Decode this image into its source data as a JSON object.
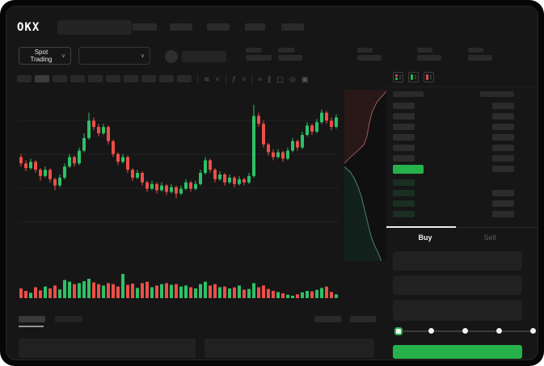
{
  "app": {
    "logo_text": "OKX"
  },
  "header": {
    "market_selector": {
      "label": "Spot Trading",
      "chevron": "∨"
    },
    "pair_selector": {
      "chevron": "∨"
    }
  },
  "colors": {
    "green": "#2ec168",
    "red": "#ec4f48",
    "accent_button": "#27b14b",
    "bid_row_tint": "#1a2f22",
    "depth_ask_fill": "#281818",
    "depth_ask_line": "#a05a55",
    "depth_bid_fill": "#12211c",
    "depth_bid_line": "#4e8070",
    "grid_line": "#222222"
  },
  "chart_toolbar": {
    "icons": [
      {
        "type": "divider"
      },
      {
        "type": "icon",
        "name": "indicator-icon",
        "glyph": "≋"
      },
      {
        "type": "icon",
        "name": "chevron-down-icon",
        "glyph": "˅"
      },
      {
        "type": "divider"
      },
      {
        "type": "icon",
        "name": "function-icon",
        "glyph": "ƒ"
      },
      {
        "type": "icon",
        "name": "chevron-down-icon",
        "glyph": "˅"
      },
      {
        "type": "divider"
      },
      {
        "type": "icon",
        "name": "line-chart-icon",
        "glyph": "≈"
      },
      {
        "type": "icon",
        "name": "draw-tool-icon",
        "glyph": "∥"
      },
      {
        "type": "icon",
        "name": "camera-icon",
        "glyph": "▢"
      },
      {
        "type": "icon",
        "name": "settings-gear-icon",
        "glyph": "◎"
      },
      {
        "type": "icon",
        "name": "fullscreen-icon",
        "glyph": "▣"
      }
    ]
  },
  "orderbook": {
    "view_toggles": [
      {
        "name": "book-split-view-icon",
        "stripes": [
          "red",
          "green"
        ]
      },
      {
        "name": "book-bids-view-icon",
        "stripes": [
          "green"
        ]
      },
      {
        "name": "book-asks-view-icon",
        "stripes": [
          "red"
        ]
      }
    ],
    "ask_row_count": 6,
    "bid_rows": [
      {
        "right_bar": false
      },
      {
        "right_bar": true
      },
      {
        "right_bar": true
      },
      {
        "right_bar": true
      }
    ]
  },
  "trade_panel": {
    "tabs": [
      {
        "label": "Buy",
        "active": true
      },
      {
        "label": "Sell",
        "active": false
      }
    ],
    "slider_stops_percent": [
      0,
      25,
      50,
      75,
      100
    ],
    "slider_value_percent": 0
  },
  "chart_data": [
    {
      "type": "candlestick",
      "title": "",
      "xlabel": "",
      "ylabel": "",
      "ylim": [
        0,
        100
      ],
      "grid": true,
      "candles": [
        [
          60,
          56,
          54,
          62
        ],
        [
          56,
          53,
          51,
          58
        ],
        [
          53,
          57,
          52,
          59
        ],
        [
          57,
          52,
          50,
          58
        ],
        [
          52,
          48,
          45,
          53
        ],
        [
          48,
          52,
          47,
          54
        ],
        [
          52,
          46,
          44,
          53
        ],
        [
          46,
          42,
          39,
          47
        ],
        [
          42,
          47,
          41,
          49
        ],
        [
          47,
          54,
          46,
          56
        ],
        [
          54,
          60,
          53,
          62
        ],
        [
          60,
          56,
          54,
          61
        ],
        [
          56,
          64,
          55,
          66
        ],
        [
          64,
          72,
          63,
          75
        ],
        [
          72,
          83,
          71,
          88
        ],
        [
          83,
          79,
          77,
          85
        ],
        [
          79,
          75,
          73,
          81
        ],
        [
          75,
          79,
          74,
          81
        ],
        [
          79,
          70,
          68,
          80
        ],
        [
          70,
          62,
          60,
          71
        ],
        [
          62,
          57,
          55,
          63
        ],
        [
          57,
          60,
          56,
          62
        ],
        [
          60,
          52,
          50,
          61
        ],
        [
          52,
          47,
          45,
          53
        ],
        [
          47,
          50,
          46,
          52
        ],
        [
          50,
          44,
          42,
          51
        ],
        [
          44,
          40,
          38,
          45
        ],
        [
          40,
          43,
          39,
          45
        ],
        [
          43,
          39,
          37,
          44
        ],
        [
          39,
          42,
          38,
          44
        ],
        [
          42,
          38,
          36,
          43
        ],
        [
          38,
          41,
          37,
          43
        ],
        [
          41,
          37,
          34,
          42
        ],
        [
          37,
          40,
          36,
          42
        ],
        [
          40,
          44,
          39,
          46
        ],
        [
          44,
          40,
          38,
          45
        ],
        [
          40,
          43,
          39,
          45
        ],
        [
          43,
          50,
          42,
          52
        ],
        [
          50,
          58,
          49,
          60
        ],
        [
          58,
          52,
          50,
          59
        ],
        [
          52,
          46,
          44,
          53
        ],
        [
          46,
          49,
          45,
          51
        ],
        [
          49,
          44,
          42,
          50
        ],
        [
          44,
          47,
          43,
          49
        ],
        [
          47,
          43,
          41,
          48
        ],
        [
          43,
          46,
          42,
          48
        ],
        [
          46,
          44,
          42,
          47
        ],
        [
          44,
          48,
          43,
          50
        ],
        [
          48,
          86,
          47,
          93
        ],
        [
          86,
          81,
          79,
          88
        ],
        [
          81,
          68,
          66,
          83
        ],
        [
          68,
          63,
          61,
          69
        ],
        [
          63,
          60,
          58,
          65
        ],
        [
          60,
          63,
          59,
          65
        ],
        [
          63,
          59,
          57,
          64
        ],
        [
          59,
          64,
          58,
          66
        ],
        [
          64,
          70,
          63,
          72
        ],
        [
          70,
          66,
          64,
          71
        ],
        [
          66,
          74,
          65,
          76
        ],
        [
          74,
          80,
          73,
          82
        ],
        [
          80,
          76,
          74,
          81
        ],
        [
          76,
          82,
          75,
          84
        ],
        [
          82,
          88,
          81,
          90
        ],
        [
          88,
          83,
          81,
          89
        ],
        [
          83,
          79,
          77,
          85
        ],
        [
          79,
          85,
          78,
          87
        ]
      ],
      "volume": [
        40,
        30,
        22,
        45,
        32,
        48,
        40,
        52,
        36,
        75,
        68,
        58,
        62,
        70,
        80,
        65,
        58,
        52,
        62,
        58,
        48,
        100,
        55,
        60,
        42,
        62,
        68,
        45,
        52,
        58,
        62,
        55,
        58,
        48,
        52,
        45,
        40,
        58,
        68,
        52,
        58,
        45,
        48,
        40,
        44,
        52,
        35,
        38,
        62,
        45,
        52,
        38,
        30,
        25,
        20,
        14,
        10,
        16,
        24,
        30,
        28,
        34,
        42,
        48,
        26,
        16
      ]
    },
    {
      "type": "area",
      "title": "order-book-depth-vertical",
      "asks_line": [
        [
          100,
          1
        ],
        [
          78,
          7
        ],
        [
          66,
          13
        ],
        [
          59,
          20
        ],
        [
          54,
          27
        ],
        [
          47,
          32
        ],
        [
          30,
          36
        ],
        [
          12,
          40
        ],
        [
          0,
          43
        ]
      ],
      "bids_line": [
        [
          0,
          45
        ],
        [
          14,
          48
        ],
        [
          24,
          52
        ],
        [
          33,
          57
        ],
        [
          40,
          62
        ],
        [
          46,
          68
        ],
        [
          52,
          74
        ],
        [
          58,
          80
        ],
        [
          64,
          86
        ],
        [
          72,
          91
        ],
        [
          82,
          96
        ],
        [
          88,
          100
        ]
      ]
    }
  ]
}
